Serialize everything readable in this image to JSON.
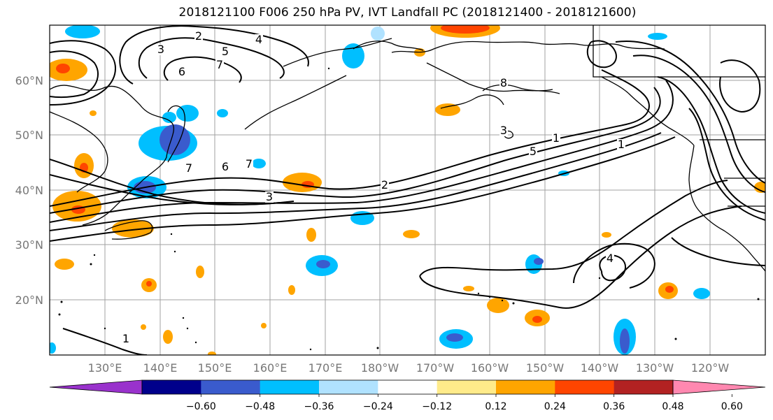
{
  "title": "2018121100 F006 250 hPa PV, IVT Landfall PC (2018121400 - 2018121600)",
  "map": {
    "lat_labels": [
      "60°N",
      "50°N",
      "40°N",
      "30°N",
      "20°N"
    ],
    "lon_labels": [
      "130°E",
      "140°E",
      "150°E",
      "160°E",
      "170°E",
      "180°W",
      "170°W",
      "160°W",
      "150°W",
      "140°W",
      "130°W",
      "120°W"
    ],
    "contour_labels": [
      "2",
      "4",
      "5",
      "7",
      "6",
      "3",
      "6",
      "7",
      "3",
      "2",
      "5",
      "1",
      "1",
      "3",
      "7",
      "8",
      "4",
      "1"
    ],
    "colors": {
      "land": "#000000",
      "grid": "#999999",
      "tick_label": "#777777"
    }
  },
  "colorbar": {
    "tick_labels": [
      "−0.60",
      "−0.48",
      "−0.36",
      "−0.24",
      "−0.12",
      "0.12",
      "0.24",
      "0.36",
      "0.48",
      "0.60"
    ],
    "colors": [
      "#9932cc",
      "#00008b",
      "#3a5bcd",
      "#00bfff",
      "#b0e2ff",
      "#ffffff",
      "#ffeb8a",
      "#ffa500",
      "#ff4500",
      "#b22222",
      "#ff88b0"
    ]
  }
}
